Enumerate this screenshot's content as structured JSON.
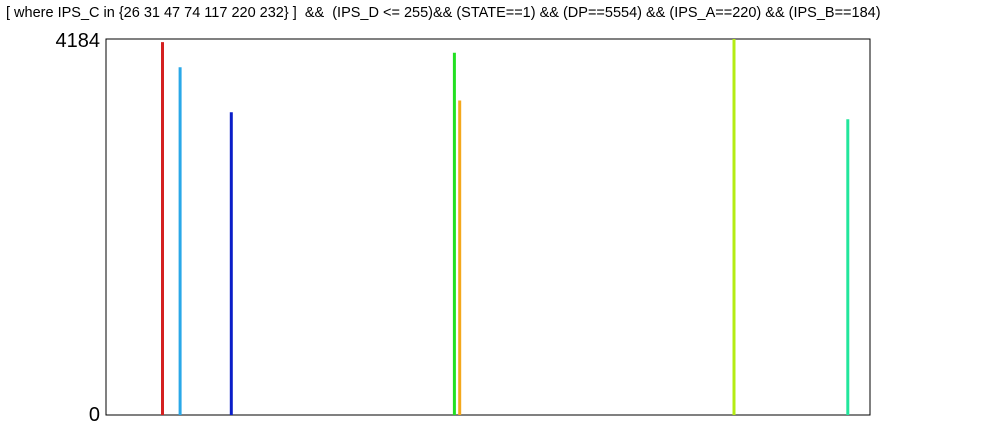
{
  "chart_data": {
    "type": "bar",
    "title": "[ where IPS_C in {26 31 47 74 117 220 232} ]  &&  (IPS_D <= 255)&& (STATE==1) && (DP==5554) && (IPS_A==220) && (IPS_B==184)",
    "xlabel": "",
    "ylabel": "",
    "ylim": [
      0,
      4184
    ],
    "xlim": [
      0,
      100
    ],
    "y_tick_labels": [
      "0",
      "4184"
    ],
    "grid": false,
    "series": [
      {
        "x": 7.4,
        "value": 4150,
        "color": "#d42020"
      },
      {
        "x": 9.7,
        "value": 3870,
        "color": "#2aa8e8"
      },
      {
        "x": 16.4,
        "value": 3370,
        "color": "#0a1ec8"
      },
      {
        "x": 45.6,
        "value": 4030,
        "color": "#22e022"
      },
      {
        "x": 46.3,
        "value": 3500,
        "color": "#f4a81c"
      },
      {
        "x": 82.2,
        "value": 4184,
        "color": "#b4ec14"
      },
      {
        "x": 97.1,
        "value": 3290,
        "color": "#22e69c"
      }
    ]
  }
}
